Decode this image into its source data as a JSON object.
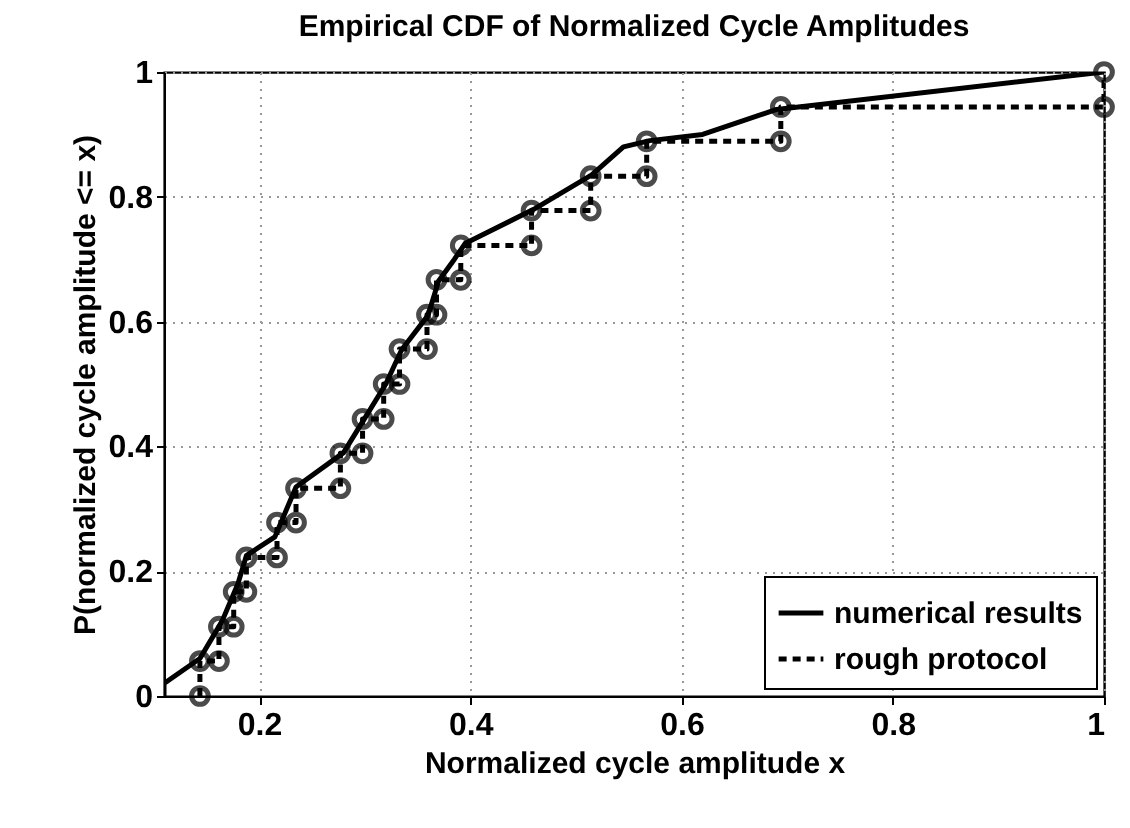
{
  "chart_data": {
    "type": "line",
    "title": "Empirical CDF of Normalized Cycle Amplitudes",
    "xlabel": "Normalized cycle amplitude x",
    "ylabel": "P(normalized cycle amplitude <= x)",
    "xlim": [
      0.11,
      1
    ],
    "xticks": [
      0.2,
      0.4,
      0.6,
      0.8,
      1
    ],
    "ylim": [
      0,
      1
    ],
    "yticks": [
      0,
      0.2,
      0.4,
      0.6,
      0.8,
      1
    ],
    "grid": true,
    "legend": "bottom right",
    "series": [
      {
        "name": "numerical results",
        "color": "#000000",
        "line_style": "solid",
        "marker": "none",
        "x": [
          0.11,
          0.11,
          0.144,
          0.165,
          0.18,
          0.188,
          0.215,
          0.235,
          0.28,
          0.3,
          0.32,
          0.335,
          0.36,
          0.37,
          0.385,
          0.395,
          0.46,
          0.515,
          0.545,
          0.57,
          0.62,
          0.69,
          1
        ],
        "values": [
          0,
          0.02,
          0.06,
          0.12,
          0.18,
          0.225,
          0.255,
          0.335,
          0.39,
          0.445,
          0.5,
          0.555,
          0.61,
          0.665,
          0.7,
          0.725,
          0.78,
          0.835,
          0.88,
          0.89,
          0.9,
          0.94,
          1
        ]
      },
      {
        "name": "rough protocol",
        "color": "#000000",
        "line_style": "dashed",
        "marker": "circle",
        "x": [
          0.144,
          0.144,
          0.162,
          0.162,
          0.176,
          0.176,
          0.188,
          0.188,
          0.217,
          0.217,
          0.235,
          0.235,
          0.277,
          0.277,
          0.298,
          0.298,
          0.318,
          0.318,
          0.333,
          0.333,
          0.359,
          0.359,
          0.368,
          0.368,
          0.391,
          0.391,
          0.458,
          0.458,
          0.514,
          0.514,
          0.567,
          0.567,
          0.694,
          0.694,
          1,
          1
        ],
        "values": [
          0,
          0.056,
          0.056,
          0.111,
          0.111,
          0.167,
          0.167,
          0.222,
          0.222,
          0.278,
          0.278,
          0.333,
          0.333,
          0.389,
          0.389,
          0.444,
          0.444,
          0.5,
          0.5,
          0.556,
          0.556,
          0.611,
          0.611,
          0.667,
          0.667,
          0.722,
          0.722,
          0.778,
          0.778,
          0.833,
          0.833,
          0.889,
          0.889,
          0.944,
          0.944,
          1
        ]
      }
    ]
  }
}
